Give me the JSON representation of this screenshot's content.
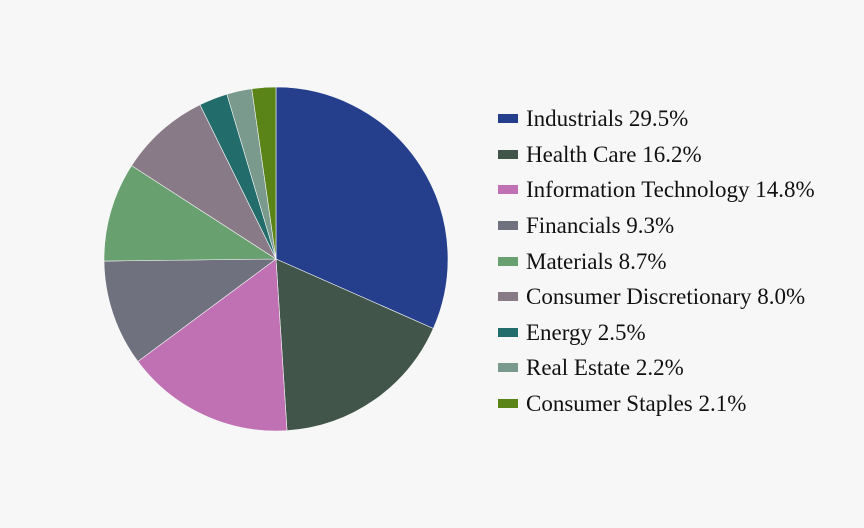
{
  "chart_data": {
    "type": "pie",
    "title": "",
    "legend_position": "right",
    "start_angle": "12 o'clock",
    "direction": "clockwise",
    "slices": [
      {
        "label": "Industrials 29.5%",
        "category": "Industrials",
        "value": 29.5,
        "color": "#253f8c"
      },
      {
        "label": "Health Care 16.2%",
        "category": "Health Care",
        "value": 16.2,
        "color": "#42554a"
      },
      {
        "label": "Information Technology 14.8%",
        "category": "Information Technology",
        "value": 14.8,
        "color": "#c071b4"
      },
      {
        "label": "Financials 9.3%",
        "category": "Financials",
        "value": 9.3,
        "color": "#70717e"
      },
      {
        "label": "Materials 8.7%",
        "category": "Materials",
        "value": 8.7,
        "color": "#68a06f"
      },
      {
        "label": "Consumer Discretionary 8.0%",
        "category": "Consumer Discretionary",
        "value": 8.0,
        "color": "#887b87"
      },
      {
        "label": "Energy 2.5%",
        "category": "Energy",
        "value": 2.5,
        "color": "#236c6c"
      },
      {
        "label": "Real Estate 2.2%",
        "category": "Real Estate",
        "value": 2.2,
        "color": "#799a8d"
      },
      {
        "label": "Consumer Staples 2.1%",
        "category": "Consumer Staples",
        "value": 2.1,
        "color": "#5a8417"
      }
    ]
  }
}
